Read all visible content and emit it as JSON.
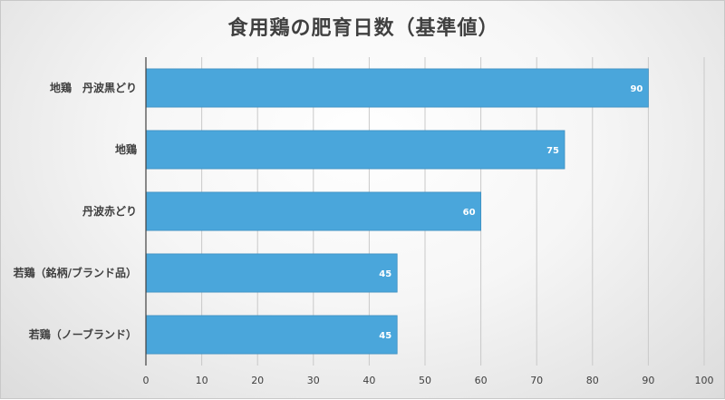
{
  "chart_data": {
    "type": "bar",
    "orientation": "horizontal",
    "title": "食用鶏の肥育日数（基準値）",
    "categories": [
      "地鶏　丹波黒どり",
      "地鶏",
      "丹波赤どり",
      "若鶏（銘柄/ブランド品）",
      "若鶏（ノーブランド）"
    ],
    "values": [
      90,
      75,
      60,
      45,
      45
    ],
    "data_labels": [
      "90",
      "75",
      "60",
      "45",
      "45"
    ],
    "xlabel": "",
    "ylabel": "",
    "xlim": [
      0,
      100
    ],
    "x_ticks": [
      0,
      10,
      20,
      30,
      40,
      50,
      60,
      70,
      80,
      90,
      100
    ],
    "grid": true,
    "legend": "none",
    "bar_color": "#4aa6db",
    "bar_border_color": "#3d8fc0",
    "grid_color": "#c9c9c9",
    "axis_color": "#404040"
  }
}
